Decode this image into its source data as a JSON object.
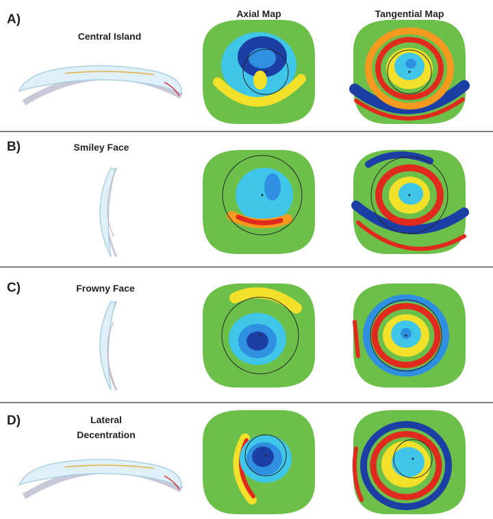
{
  "columns": [
    "Axial Map",
    "Tangential Map"
  ],
  "rows": [
    {
      "label": "A)",
      "title": "Central Island"
    },
    {
      "label": "B)",
      "title": "Smiley Face"
    },
    {
      "label": "C)",
      "title": "Frowny Face"
    },
    {
      "label": "D)",
      "title": "Lateral Decentration"
    }
  ]
}
